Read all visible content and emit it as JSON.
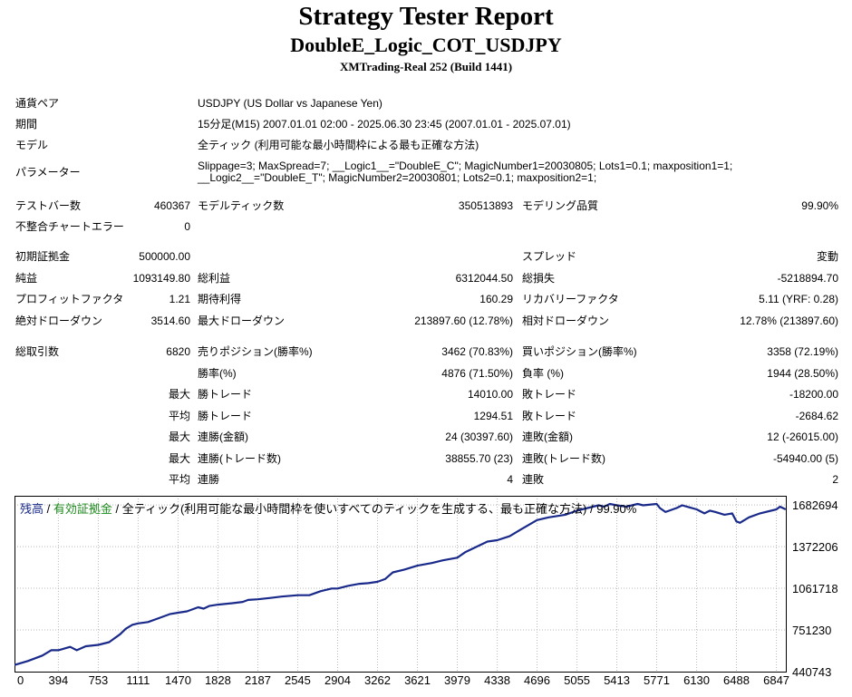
{
  "header": {
    "title": "Strategy Tester Report",
    "ea_name": "DoubleE_Logic_COT_USDJPY",
    "server": "XMTrading-Real 252 (Build 1441)"
  },
  "info": {
    "pair_label": "通貨ペア",
    "pair_value": "USDJPY (US Dollar vs Japanese Yen)",
    "period_label": "期間",
    "period_value": "15分足(M15) 2007.01.01 02:00 - 2025.06.30 23:45 (2007.01.01 - 2025.07.01)",
    "model_label": "モデル",
    "model_value": "全ティック (利用可能な最小時間枠による最も正確な方法)",
    "params_label": "パラメーター",
    "params_line1": "Slippage=3; MaxSpread=7; __Logic1__=\"DoubleE_C\"; MagicNumber1=20030805; Lots1=0.1; maxposition1=1;",
    "params_line2": "__Logic2__=\"DoubleE_T\"; MagicNumber2=20030801; Lots2=0.1; maxposition2=1;"
  },
  "stats": {
    "bars_label": "テストバー数",
    "bars_value": "460367",
    "ticks_label": "モデルティック数",
    "ticks_value": "350513893",
    "quality_label": "モデリング品質",
    "quality_value": "99.90%",
    "mismatch_label": "不整合チャートエラー",
    "mismatch_value": "0",
    "deposit_label": "初期証拠金",
    "deposit_value": "500000.00",
    "spread_label": "スプレッド",
    "spread_value": "変動",
    "net_label": "純益",
    "net_value": "1093149.80",
    "gross_profit_label": "総利益",
    "gross_profit_value": "6312044.50",
    "gross_loss_label": "総損失",
    "gross_loss_value": "-5218894.70",
    "pf_label": "プロフィットファクタ",
    "pf_value": "1.21",
    "expected_label": "期待利得",
    "expected_value": "160.29",
    "recovery_label": "リカバリーファクタ",
    "recovery_value": "5.11 (YRF: 0.28)",
    "abs_dd_label": "絶対ドローダウン",
    "abs_dd_value": "3514.60",
    "max_dd_label": "最大ドローダウン",
    "max_dd_value": "213897.60 (12.78%)",
    "rel_dd_label": "相対ドローダウン",
    "rel_dd_value": "12.78% (213897.60)",
    "total_label": "総取引数",
    "total_value": "6820",
    "short_label": "売りポジション(勝率%)",
    "short_value": "3462 (70.83%)",
    "long_label": "買いポジション(勝率%)",
    "long_value": "3358 (72.19%)",
    "win_pct_label": "勝率(%)",
    "win_pct_value": "4876 (71.50%)",
    "loss_pct_label": "負率 (%)",
    "loss_pct_value": "1944 (28.50%)",
    "max_prefix": "最大",
    "avg_prefix": "平均",
    "largest_win_label": "勝トレード",
    "largest_win_value": "14010.00",
    "largest_loss_label": "敗トレード",
    "largest_loss_value": "-18200.00",
    "avg_win_label": "勝トレード",
    "avg_win_value": "1294.51",
    "avg_loss_label": "敗トレード",
    "avg_loss_value": "-2684.62",
    "max_consec_wins_amt_label": "連勝(金額)",
    "max_consec_wins_amt_value": "24 (30397.60)",
    "max_consec_loss_amt_label": "連敗(金額)",
    "max_consec_loss_amt_value": "12 (-26015.00)",
    "max_consec_wins_cnt_label": "連勝(トレード数)",
    "max_consec_wins_cnt_value": "38855.70 (23)",
    "max_consec_loss_cnt_label": "連敗(トレード数)",
    "max_consec_loss_cnt_value": "-54940.00 (5)",
    "avg_consec_wins_label": "連勝",
    "avg_consec_wins_value": "4",
    "avg_consec_loss_label": "連敗",
    "avg_consec_loss_value": "2"
  },
  "chart_legend": {
    "balance": "残高",
    "sep1": " / ",
    "equity": "有効証拠金",
    "sep2": " / ",
    "model_text": "全ティック(利用可能な最小時間枠を使いすべてのティックを生成する、最も正確な方法) / 99.90%"
  },
  "colors": {
    "balance": "#1a2a8a",
    "equity": "#1d8a1d",
    "grid": "#b8b8b8",
    "frame": "#000000"
  },
  "chart_data": {
    "type": "line",
    "xlabel": "",
    "ylabel": "",
    "x_ticks": [
      0,
      394,
      753,
      1111,
      1470,
      1828,
      2187,
      2545,
      2904,
      3262,
      3621,
      3979,
      4338,
      4696,
      5055,
      5413,
      5771,
      6130,
      6488,
      6847
    ],
    "y_ticks": [
      440743,
      751230,
      1061718,
      1372206,
      1682694
    ],
    "xlim": [
      0,
      6940
    ],
    "ylim": [
      440743,
      1751000
    ],
    "grid": true,
    "series": [
      {
        "name": "残高",
        "x": [
          0,
          120,
          250,
          330,
          394,
          500,
          560,
          640,
          753,
          850,
          950,
          1000,
          1060,
          1111,
          1200,
          1300,
          1400,
          1470,
          1550,
          1650,
          1700,
          1750,
          1828,
          1950,
          2050,
          2100,
          2187,
          2300,
          2400,
          2545,
          2650,
          2750,
          2850,
          2904,
          3000,
          3100,
          3180,
          3262,
          3330,
          3400,
          3500,
          3621,
          3750,
          3850,
          3979,
          4050,
          4150,
          4250,
          4338,
          4450,
          4550,
          4696,
          4800,
          4950,
          5055,
          5100,
          5150,
          5250,
          5300,
          5350,
          5413,
          5500,
          5600,
          5650,
          5771,
          5800,
          5850,
          5950,
          6000,
          6130,
          6200,
          6250,
          6300,
          6380,
          6450,
          6488,
          6520,
          6600,
          6700,
          6847,
          6880,
          6930
        ],
        "values": [
          490000,
          520000,
          560000,
          600000,
          600000,
          625000,
          600000,
          630000,
          640000,
          660000,
          720000,
          760000,
          790000,
          800000,
          810000,
          840000,
          870000,
          880000,
          890000,
          920000,
          910000,
          930000,
          940000,
          950000,
          960000,
          975000,
          980000,
          990000,
          1000000,
          1010000,
          1010000,
          1040000,
          1060000,
          1060000,
          1080000,
          1095000,
          1100000,
          1110000,
          1130000,
          1180000,
          1200000,
          1230000,
          1250000,
          1270000,
          1290000,
          1330000,
          1370000,
          1410000,
          1420000,
          1450000,
          1500000,
          1570000,
          1590000,
          1610000,
          1640000,
          1650000,
          1660000,
          1680000,
          1670000,
          1690000,
          1680000,
          1670000,
          1690000,
          1680000,
          1690000,
          1660000,
          1630000,
          1660000,
          1680000,
          1650000,
          1620000,
          1640000,
          1630000,
          1610000,
          1620000,
          1560000,
          1550000,
          1590000,
          1620000,
          1650000,
          1670000,
          1650000
        ]
      }
    ]
  }
}
